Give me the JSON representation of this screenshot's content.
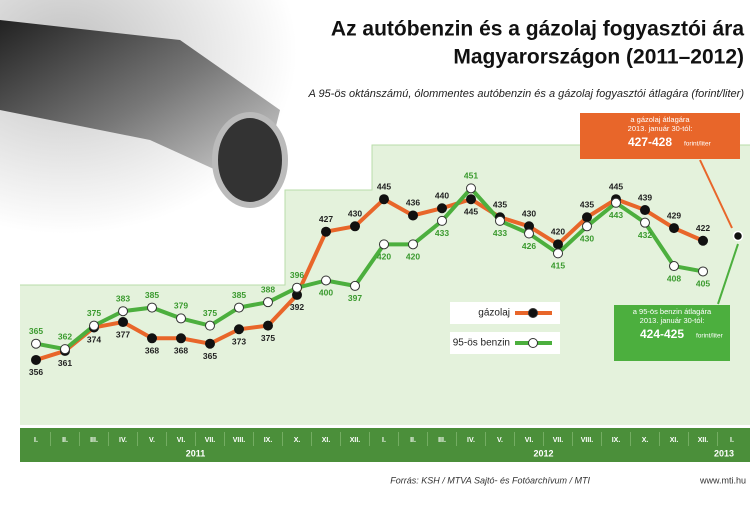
{
  "chart_data": {
    "type": "line",
    "title": [
      "Az autóbenzin és a gázolaj fogyasztói ára",
      "Magyarországon (2011–2012)"
    ],
    "subtitle": "A 95-ös oktánszámú, ólommentes autóbenzin és a gázolaj fogyasztói átlagára (forint/liter)",
    "categories": [
      "I.",
      "II.",
      "III.",
      "IV.",
      "V.",
      "VI.",
      "VII.",
      "VIII.",
      "IX.",
      "X.",
      "XI.",
      "XII.",
      "I.",
      "II.",
      "III.",
      "IV.",
      "V.",
      "VI.",
      "VII.",
      "VIII.",
      "IX.",
      "X.",
      "XI.",
      "XII.",
      "I."
    ],
    "year_labels": [
      "2011",
      "2012",
      "2013"
    ],
    "series": [
      {
        "name": "gázolaj",
        "color": "#e8662a",
        "values": [
          356,
          361,
          374,
          377,
          368,
          368,
          365,
          373,
          375,
          392,
          427,
          430,
          445,
          436,
          440,
          445,
          435,
          430,
          420,
          435,
          445,
          439,
          429,
          422,
          null
        ]
      },
      {
        "name": "95-ös benzin",
        "color": "#4caf3e",
        "values": [
          365,
          362,
          375,
          383,
          385,
          379,
          375,
          385,
          388,
          396,
          400,
          397,
          420,
          420,
          433,
          451,
          433,
          426,
          415,
          430,
          443,
          432,
          408,
          405,
          null
        ]
      }
    ],
    "ylim": [
      320,
      475
    ],
    "annotations": [
      {
        "lines": [
          "a gázolaj átlagára",
          "2013. január 30-tól:"
        ],
        "value": "427-428",
        "unit": "forint/liter"
      },
      {
        "lines": [
          "a 95-ös benzin átlagára",
          "2013. január 30-tól:"
        ],
        "value": "424-425",
        "unit": "forint/liter"
      }
    ],
    "source": "Forrás: KSH / MTVA Sajtó- és Fotóarchívum / MTI",
    "website": "www.mti.hu"
  }
}
